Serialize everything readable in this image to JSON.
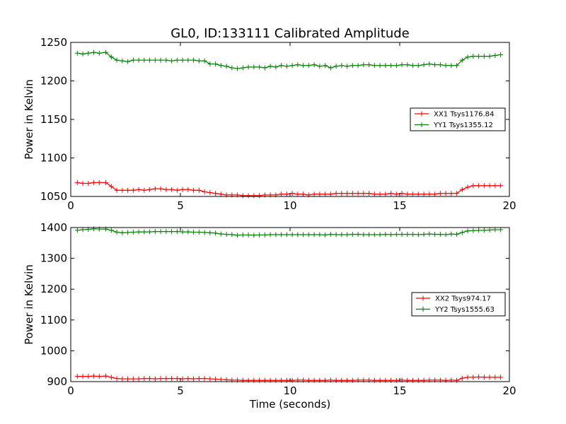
{
  "title": "GL0, ID:133111 Calibrated Amplitude",
  "colors": {
    "red": "#ff0000",
    "green": "#008000"
  },
  "chart_data": [
    {
      "type": "line",
      "xlabel": "",
      "ylabel": "Power in Kelvin",
      "xlim": [
        0,
        20
      ],
      "ylim": [
        1050,
        1250
      ],
      "xticks": [
        "0",
        "5",
        "10",
        "15",
        "20"
      ],
      "yticks": [
        "1050",
        "1100",
        "1150",
        "1200",
        "1250"
      ],
      "grid": false,
      "legend_position": "right",
      "x": [
        0.3,
        0.55,
        0.8,
        1.05,
        1.3,
        1.6,
        1.85,
        2.1,
        2.35,
        2.6,
        2.85,
        3.1,
        3.35,
        3.6,
        3.85,
        4.1,
        4.35,
        4.6,
        4.85,
        5.1,
        5.35,
        5.6,
        5.85,
        6.1,
        6.35,
        6.6,
        6.85,
        7.1,
        7.35,
        7.6,
        7.85,
        8.1,
        8.35,
        8.6,
        8.85,
        9.1,
        9.35,
        9.6,
        9.85,
        10.1,
        10.35,
        10.6,
        10.85,
        11.1,
        11.35,
        11.6,
        11.85,
        12.1,
        12.35,
        12.6,
        12.85,
        13.1,
        13.35,
        13.6,
        13.85,
        14.1,
        14.35,
        14.6,
        14.85,
        15.1,
        15.35,
        15.6,
        15.85,
        16.1,
        16.35,
        16.6,
        16.85,
        17.1,
        17.35,
        17.6,
        17.85,
        18.1,
        18.35,
        18.6,
        18.85,
        19.1,
        19.35,
        19.6
      ],
      "series": [
        {
          "name": "XX1 Tsys1176.84",
          "color": "#ff0000",
          "values": [
            1068,
            1067,
            1067,
            1068,
            1068,
            1068,
            1063,
            1058,
            1058,
            1058,
            1058,
            1059,
            1058,
            1059,
            1060,
            1060,
            1059,
            1059,
            1058,
            1059,
            1059,
            1058,
            1058,
            1056,
            1055,
            1054,
            1053,
            1052,
            1052,
            1052,
            1051,
            1051,
            1051,
            1051,
            1052,
            1052,
            1052,
            1053,
            1053,
            1054,
            1053,
            1053,
            1052,
            1053,
            1053,
            1053,
            1053,
            1054,
            1054,
            1054,
            1054,
            1054,
            1054,
            1054,
            1053,
            1053,
            1053,
            1054,
            1053,
            1054,
            1053,
            1053,
            1053,
            1053,
            1053,
            1053,
            1054,
            1054,
            1054,
            1054,
            1059,
            1062,
            1064,
            1064,
            1064,
            1064,
            1064,
            1064
          ]
        },
        {
          "name": "YY1 Tsys1355.12",
          "color": "#008000",
          "values": [
            1236,
            1235,
            1236,
            1237,
            1236,
            1237,
            1231,
            1227,
            1226,
            1225,
            1227,
            1227,
            1227,
            1227,
            1227,
            1227,
            1227,
            1226,
            1227,
            1227,
            1227,
            1227,
            1226,
            1226,
            1222,
            1222,
            1220,
            1219,
            1217,
            1216,
            1217,
            1218,
            1218,
            1218,
            1217,
            1219,
            1218,
            1220,
            1219,
            1220,
            1221,
            1220,
            1220,
            1221,
            1219,
            1220,
            1217,
            1219,
            1220,
            1219,
            1220,
            1220,
            1221,
            1221,
            1220,
            1220,
            1220,
            1220,
            1220,
            1221,
            1221,
            1220,
            1220,
            1221,
            1222,
            1221,
            1221,
            1220,
            1220,
            1220,
            1227,
            1231,
            1232,
            1232,
            1232,
            1232,
            1233,
            1234
          ]
        }
      ]
    },
    {
      "type": "line",
      "xlabel": "Time (seconds)",
      "ylabel": "Power in Kelvin",
      "xlim": [
        0,
        20
      ],
      "ylim": [
        900,
        1400
      ],
      "xticks": [
        "0",
        "5",
        "10",
        "15",
        "20"
      ],
      "yticks": [
        "900",
        "1000",
        "1100",
        "1200",
        "1300",
        "1400"
      ],
      "grid": false,
      "legend_position": "right",
      "x": [
        0.3,
        0.55,
        0.8,
        1.05,
        1.3,
        1.6,
        1.85,
        2.1,
        2.35,
        2.6,
        2.85,
        3.1,
        3.35,
        3.6,
        3.85,
        4.1,
        4.35,
        4.6,
        4.85,
        5.1,
        5.35,
        5.6,
        5.85,
        6.1,
        6.35,
        6.6,
        6.85,
        7.1,
        7.35,
        7.6,
        7.85,
        8.1,
        8.35,
        8.6,
        8.85,
        9.1,
        9.35,
        9.6,
        9.85,
        10.1,
        10.35,
        10.6,
        10.85,
        11.1,
        11.35,
        11.6,
        11.85,
        12.1,
        12.35,
        12.6,
        12.85,
        13.1,
        13.35,
        13.6,
        13.85,
        14.1,
        14.35,
        14.6,
        14.85,
        15.1,
        15.35,
        15.6,
        15.85,
        16.1,
        16.35,
        16.6,
        16.85,
        17.1,
        17.35,
        17.6,
        17.85,
        18.1,
        18.35,
        18.6,
        18.85,
        19.1,
        19.35,
        19.6
      ],
      "series": [
        {
          "name": "XX2 Tsys974.17",
          "color": "#ff0000",
          "values": [
            917,
            917,
            917,
            918,
            917,
            918,
            914,
            910,
            909,
            909,
            909,
            909,
            910,
            910,
            909,
            910,
            910,
            910,
            910,
            909,
            910,
            909,
            910,
            910,
            909,
            908,
            907,
            906,
            905,
            905,
            904,
            904,
            904,
            904,
            904,
            904,
            904,
            904,
            904,
            904,
            905,
            905,
            904,
            904,
            904,
            904,
            905,
            904,
            904,
            904,
            904,
            905,
            905,
            905,
            904,
            904,
            904,
            904,
            904,
            905,
            904,
            904,
            904,
            904,
            905,
            905,
            905,
            904,
            905,
            904,
            911,
            914,
            914,
            915,
            914,
            914,
            914,
            914
          ]
        },
        {
          "name": "YY2 Tsys1555.63",
          "color": "#008000",
          "values": [
            1391,
            1393,
            1394,
            1396,
            1395,
            1395,
            1391,
            1385,
            1383,
            1384,
            1385,
            1386,
            1386,
            1386,
            1387,
            1387,
            1387,
            1387,
            1387,
            1386,
            1386,
            1385,
            1385,
            1384,
            1383,
            1382,
            1379,
            1378,
            1377,
            1375,
            1376,
            1376,
            1375,
            1376,
            1376,
            1377,
            1377,
            1377,
            1377,
            1377,
            1377,
            1377,
            1377,
            1377,
            1377,
            1376,
            1378,
            1377,
            1377,
            1377,
            1378,
            1378,
            1377,
            1377,
            1377,
            1377,
            1378,
            1377,
            1378,
            1378,
            1378,
            1378,
            1377,
            1378,
            1379,
            1378,
            1378,
            1377,
            1379,
            1378,
            1384,
            1389,
            1390,
            1391,
            1391,
            1392,
            1393,
            1393
          ]
        }
      ]
    }
  ]
}
